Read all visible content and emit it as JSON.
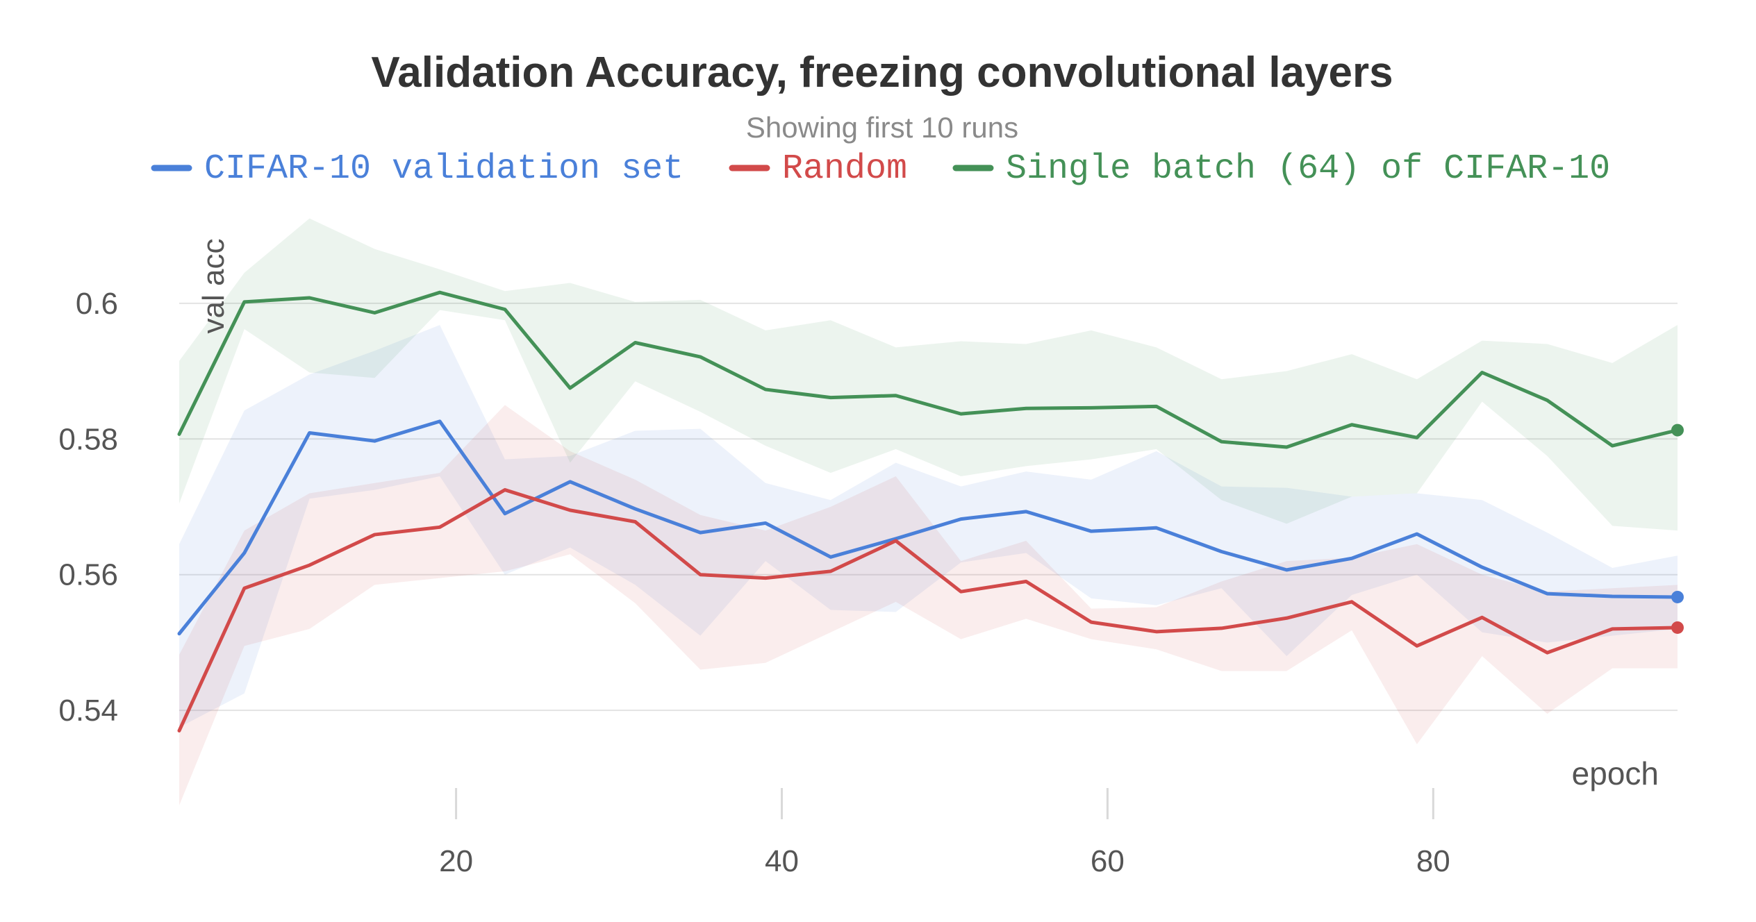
{
  "chart_data": {
    "type": "line",
    "title": "Validation Accuracy, freezing convolutional layers",
    "subtitle": "Showing first 10 runs",
    "xlabel": "epoch",
    "ylabel": "val acc",
    "xlim": [
      3,
      95
    ],
    "ylim": [
      0.526,
      0.614
    ],
    "x_ticks": [
      20,
      40,
      60,
      80
    ],
    "y_ticks": [
      0.54,
      0.56,
      0.58,
      0.6
    ],
    "y_tick_labels": [
      "0.54",
      "0.56",
      "0.58",
      "0.6"
    ],
    "x_tick_labels": [
      "20",
      "40",
      "60",
      "80"
    ],
    "grid": "horizontal",
    "legend_position": "top",
    "x": [
      3,
      7,
      11,
      15,
      19,
      23,
      27,
      31,
      35,
      39,
      43,
      47,
      51,
      55,
      59,
      63,
      67,
      71,
      75,
      79,
      83,
      87,
      91,
      95
    ],
    "series": [
      {
        "name": "CIFAR-10 validation set",
        "color": "#4a80d9",
        "values": [
          0.5513,
          0.5632,
          0.5809,
          0.5797,
          0.5826,
          0.569,
          0.5737,
          0.5697,
          0.5662,
          0.5676,
          0.5626,
          0.5653,
          0.5682,
          0.5693,
          0.5664,
          0.5669,
          0.5634,
          0.5607,
          0.5624,
          0.566,
          0.5611,
          0.5572,
          0.5568,
          0.5567
        ],
        "upper": [
          0.5645,
          0.5842,
          0.5895,
          0.593,
          0.5968,
          0.577,
          0.5775,
          0.5812,
          0.5815,
          0.5735,
          0.571,
          0.5765,
          0.573,
          0.5752,
          0.574,
          0.5782,
          0.573,
          0.5728,
          0.5715,
          0.572,
          0.571,
          0.5662,
          0.561,
          0.5628
        ],
        "lower": [
          0.5375,
          0.5425,
          0.5712,
          0.5725,
          0.5745,
          0.56,
          0.564,
          0.5585,
          0.551,
          0.562,
          0.5548,
          0.5545,
          0.5618,
          0.5632,
          0.5565,
          0.5555,
          0.558,
          0.548,
          0.557,
          0.56,
          0.5515,
          0.55,
          0.551,
          0.552
        ]
      },
      {
        "name": "Random",
        "color": "#d24a4a",
        "values": [
          0.537,
          0.558,
          0.5614,
          0.5659,
          0.567,
          0.5725,
          0.5695,
          0.5678,
          0.56,
          0.5595,
          0.5605,
          0.565,
          0.5575,
          0.559,
          0.553,
          0.5516,
          0.5521,
          0.5536,
          0.556,
          0.5495,
          0.5537,
          0.5485,
          0.552,
          0.5522
        ],
        "upper": [
          0.5482,
          0.5665,
          0.572,
          0.5735,
          0.575,
          0.585,
          0.5782,
          0.574,
          0.5688,
          0.5665,
          0.57,
          0.5745,
          0.562,
          0.565,
          0.555,
          0.5552,
          0.559,
          0.562,
          0.5625,
          0.5645,
          0.56,
          0.5575,
          0.558,
          0.5585
        ],
        "lower": [
          0.526,
          0.5495,
          0.552,
          0.5585,
          0.5595,
          0.5605,
          0.563,
          0.5558,
          0.546,
          0.547,
          0.5515,
          0.556,
          0.5505,
          0.5535,
          0.5505,
          0.549,
          0.5458,
          0.5458,
          0.5518,
          0.535,
          0.548,
          0.5395,
          0.5462,
          0.5462
        ]
      },
      {
        "name": "Single batch (64) of CIFAR-10",
        "color": "#449157",
        "values": [
          0.5807,
          0.6002,
          0.6008,
          0.5986,
          0.6016,
          0.5991,
          0.5875,
          0.5942,
          0.5921,
          0.5873,
          0.5861,
          0.5864,
          0.5837,
          0.5845,
          0.5846,
          0.5848,
          0.5796,
          0.5788,
          0.5821,
          0.5802,
          0.5898,
          0.5857,
          0.579,
          0.5813
        ],
        "upper": [
          0.5915,
          0.6045,
          0.6125,
          0.608,
          0.605,
          0.6018,
          0.603,
          0.6002,
          0.6005,
          0.596,
          0.5975,
          0.5935,
          0.5944,
          0.594,
          0.596,
          0.5935,
          0.5888,
          0.59,
          0.5925,
          0.5888,
          0.5945,
          0.594,
          0.5912,
          0.5968
        ],
        "lower": [
          0.5705,
          0.5962,
          0.5898,
          0.589,
          0.599,
          0.5975,
          0.5765,
          0.5885,
          0.584,
          0.579,
          0.575,
          0.5785,
          0.5745,
          0.576,
          0.577,
          0.5785,
          0.571,
          0.5675,
          0.5715,
          0.572,
          0.5855,
          0.5775,
          0.5672,
          0.5665
        ]
      }
    ]
  }
}
